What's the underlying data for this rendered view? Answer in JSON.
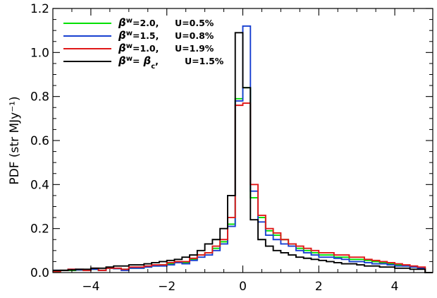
{
  "chart_data": {
    "type": "line",
    "subtype": "step-histogram",
    "title": "",
    "xlabel": "",
    "ylabel": "PDF (str MJy⁻¹)",
    "xlim": [
      -5,
      5
    ],
    "ylim": [
      0,
      1.2
    ],
    "x_ticks": [
      -4,
      -2,
      0,
      2,
      4
    ],
    "y_ticks": [
      0.0,
      0.2,
      0.4,
      0.6,
      0.8,
      1.0,
      1.2
    ],
    "x_tick_labels": [
      "−4",
      "−2",
      "0",
      "2",
      "4"
    ],
    "y_tick_labels": [
      "0.0",
      "0.2",
      "0.4",
      "0.6",
      "0.8",
      "1.0",
      "1.2"
    ],
    "grid": false,
    "legend_position": "top-left",
    "bin_width": 0.2,
    "x": [
      -5.0,
      -4.8,
      -4.6,
      -4.4,
      -4.2,
      -4.0,
      -3.8,
      -3.6,
      -3.4,
      -3.2,
      -3.0,
      -2.8,
      -2.6,
      -2.4,
      -2.2,
      -2.0,
      -1.8,
      -1.6,
      -1.4,
      -1.2,
      -1.0,
      -0.8,
      -0.6,
      -0.4,
      -0.2,
      0.0,
      0.2,
      0.4,
      0.6,
      0.8,
      1.0,
      1.2,
      1.4,
      1.6,
      1.8,
      2.0,
      2.2,
      2.4,
      2.6,
      2.8,
      3.0,
      3.2,
      3.4,
      3.6,
      3.8,
      4.0,
      4.2,
      4.4,
      4.6,
      4.8
    ],
    "series": [
      {
        "color": "#00e000",
        "legend": {
          "beta_text": "=2.0,",
          "u_text": "U=0.5%"
        },
        "values": [
          0.005,
          0.01,
          0.01,
          0.012,
          0.012,
          0.015,
          0.01,
          0.02,
          0.018,
          0.015,
          0.02,
          0.02,
          0.025,
          0.03,
          0.035,
          0.04,
          0.05,
          0.045,
          0.06,
          0.08,
          0.09,
          0.11,
          0.14,
          0.22,
          0.79,
          0.84,
          0.34,
          0.25,
          0.19,
          0.17,
          0.15,
          0.13,
          0.11,
          0.1,
          0.09,
          0.08,
          0.08,
          0.07,
          0.07,
          0.06,
          0.06,
          0.055,
          0.05,
          0.045,
          0.04,
          0.035,
          0.03,
          0.025,
          0.02,
          0.0
        ]
      },
      {
        "color": "#1840d0",
        "legend": {
          "beta_text": "=1.5,",
          "u_text": "U=0.8%"
        },
        "values": [
          0.01,
          0.01,
          0.015,
          0.012,
          0.012,
          0.015,
          0.01,
          0.02,
          0.018,
          0.01,
          0.02,
          0.02,
          0.025,
          0.03,
          0.03,
          0.035,
          0.045,
          0.04,
          0.055,
          0.07,
          0.08,
          0.1,
          0.13,
          0.21,
          0.78,
          1.12,
          0.37,
          0.23,
          0.17,
          0.15,
          0.13,
          0.12,
          0.1,
          0.09,
          0.08,
          0.07,
          0.07,
          0.065,
          0.06,
          0.05,
          0.05,
          0.045,
          0.04,
          0.04,
          0.035,
          0.03,
          0.03,
          0.025,
          0.02,
          0.0
        ]
      },
      {
        "color": "#e01818",
        "legend": {
          "beta_text": "=1.0,",
          "u_text": "U=1.9%"
        },
        "values": [
          0.005,
          0.01,
          0.015,
          0.015,
          0.01,
          0.02,
          0.01,
          0.02,
          0.02,
          0.015,
          0.025,
          0.025,
          0.03,
          0.035,
          0.035,
          0.045,
          0.05,
          0.05,
          0.065,
          0.08,
          0.09,
          0.12,
          0.15,
          0.25,
          0.76,
          0.77,
          0.4,
          0.26,
          0.2,
          0.18,
          0.15,
          0.13,
          0.12,
          0.11,
          0.1,
          0.09,
          0.09,
          0.08,
          0.08,
          0.07,
          0.07,
          0.06,
          0.055,
          0.05,
          0.045,
          0.04,
          0.035,
          0.03,
          0.025,
          0.0
        ]
      },
      {
        "color": "#000000",
        "legend": {
          "beta_text": "=",
          "u_text": "U=1.5%"
        },
        "values": [
          0.01,
          0.01,
          0.012,
          0.015,
          0.015,
          0.02,
          0.02,
          0.025,
          0.03,
          0.03,
          0.035,
          0.035,
          0.04,
          0.045,
          0.05,
          0.055,
          0.06,
          0.07,
          0.08,
          0.1,
          0.13,
          0.15,
          0.2,
          0.35,
          1.09,
          0.84,
          0.24,
          0.15,
          0.12,
          0.1,
          0.09,
          0.08,
          0.07,
          0.065,
          0.06,
          0.055,
          0.05,
          0.045,
          0.04,
          0.04,
          0.035,
          0.03,
          0.03,
          0.025,
          0.025,
          0.02,
          0.02,
          0.015,
          0.015,
          0.0
        ]
      }
    ]
  }
}
